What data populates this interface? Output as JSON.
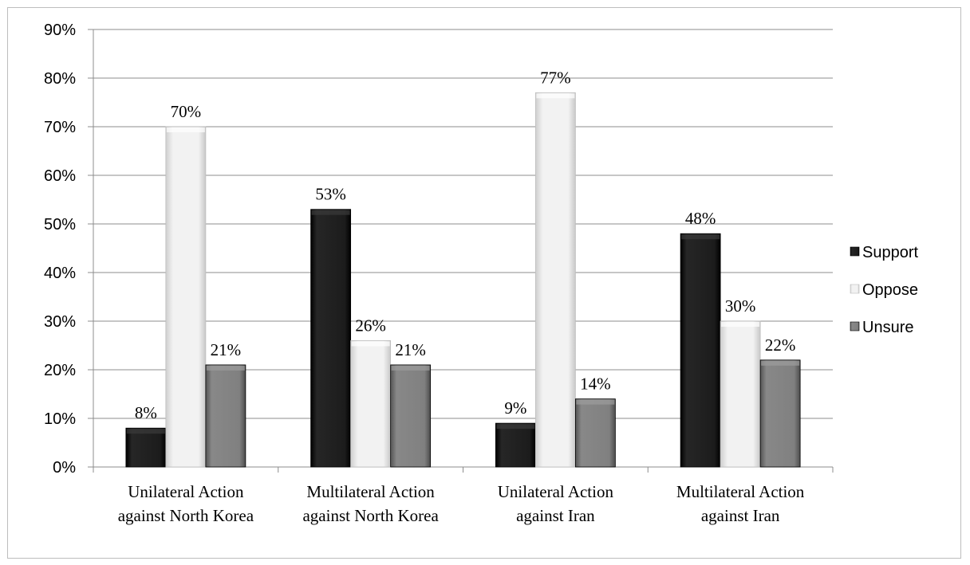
{
  "chart_data": {
    "type": "bar",
    "categories": [
      [
        "Unilateral Action",
        "against North Korea"
      ],
      [
        "Multilateral Action",
        "against North Korea"
      ],
      [
        "Unilateral Action",
        "against Iran"
      ],
      [
        "Multilateral Action",
        "against Iran"
      ]
    ],
    "series": [
      {
        "name": "Support",
        "values": [
          8,
          53,
          9,
          48
        ],
        "color": "#1a1a1a"
      },
      {
        "name": "Oppose",
        "values": [
          70,
          26,
          77,
          30
        ],
        "color": "#e6e6e6"
      },
      {
        "name": "Unsure",
        "values": [
          21,
          21,
          14,
          22
        ],
        "color": "#7d7d7d"
      }
    ],
    "data_labels": [
      [
        "8%",
        "53%",
        "9%",
        "48%"
      ],
      [
        "70%",
        "26%",
        "77%",
        "30%"
      ],
      [
        "21%",
        "21%",
        "14%",
        "22%"
      ]
    ],
    "y_ticks": [
      "0%",
      "10%",
      "20%",
      "30%",
      "40%",
      "50%",
      "60%",
      "70%",
      "80%",
      "90%"
    ],
    "ylim": [
      0,
      90
    ],
    "title": "",
    "xlabel": "",
    "ylabel": "",
    "grid": true,
    "legend_position": "right"
  }
}
